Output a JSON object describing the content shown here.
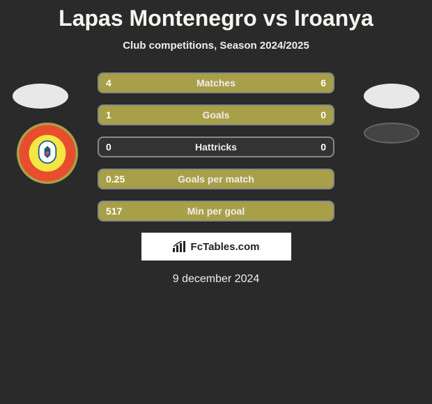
{
  "header": {
    "title": "Lapas Montenegro vs Iroanya",
    "subtitle": "Club competitions, Season 2024/2025"
  },
  "stats": [
    {
      "label": "Matches",
      "left_val": "4",
      "right_val": "6",
      "left_pct": 40,
      "right_pct": 60
    },
    {
      "label": "Goals",
      "left_val": "1",
      "right_val": "0",
      "left_pct": 85,
      "right_pct": 15
    },
    {
      "label": "Hattricks",
      "left_val": "0",
      "right_val": "0",
      "left_pct": 0,
      "right_pct": 0
    },
    {
      "label": "Goals per match",
      "left_val": "0.25",
      "right_val": "",
      "left_pct": 100,
      "right_pct": 0
    },
    {
      "label": "Min per goal",
      "left_val": "517",
      "right_val": "",
      "left_pct": 100,
      "right_pct": 0
    }
  ],
  "colors": {
    "bar_fill": "#a8a048",
    "bar_empty": "#333333",
    "border": "#888888",
    "background": "#2a2a2a",
    "text": "#f5f5f0"
  },
  "attribution": {
    "text": "FcTables.com"
  },
  "date": "9 december 2024"
}
